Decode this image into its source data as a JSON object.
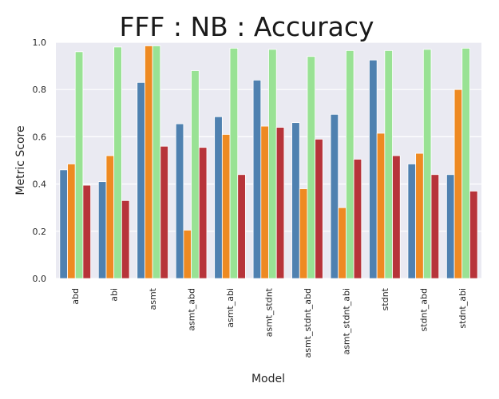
{
  "chart_data": {
    "type": "bar",
    "title": "FFF : NB : Accuracy",
    "xlabel": "Model",
    "ylabel": "Metric Score",
    "ylim": [
      0.0,
      1.0
    ],
    "yticks": [
      "0.0",
      "0.2",
      "0.4",
      "0.6",
      "0.8",
      "1.0"
    ],
    "grid": true,
    "legend": "none",
    "categories": [
      "abd",
      "abi",
      "asmt",
      "asmt_abd",
      "asmt_abi",
      "asmt_stdnt",
      "asmt_stdnt_abd",
      "asmt_stdnt_abi",
      "stdnt",
      "stdnt_abd",
      "stdnt_abi"
    ],
    "series": [
      {
        "color": "#4f81b0",
        "values": [
          0.46,
          0.41,
          0.83,
          0.655,
          0.685,
          0.84,
          0.66,
          0.695,
          0.925,
          0.485,
          0.44
        ]
      },
      {
        "color": "#ee8a22",
        "values": [
          0.485,
          0.52,
          0.985,
          0.205,
          0.61,
          0.645,
          0.38,
          0.3,
          0.615,
          0.53,
          0.8
        ]
      },
      {
        "color": "#99e294",
        "values": [
          0.96,
          0.98,
          0.985,
          0.88,
          0.975,
          0.97,
          0.94,
          0.965,
          0.965,
          0.97,
          0.975
        ]
      },
      {
        "color": "#b7343a",
        "values": [
          0.395,
          0.33,
          0.56,
          0.555,
          0.44,
          0.64,
          0.59,
          0.505,
          0.52,
          0.44,
          0.37
        ]
      }
    ],
    "colors": {
      "plot_background": "#eaeaf2",
      "grid": "#ffffff"
    }
  }
}
